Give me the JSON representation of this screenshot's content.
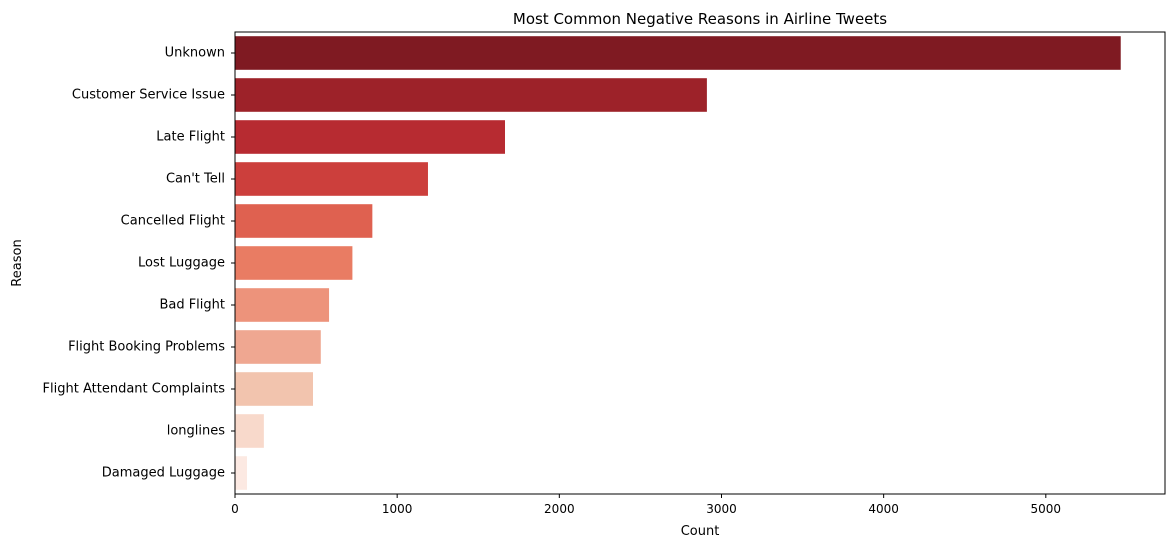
{
  "chart_data": {
    "type": "bar",
    "orientation": "horizontal",
    "title": "Most Common Negative Reasons in Airline Tweets",
    "xlabel": "Count",
    "ylabel": "Reason",
    "categories": [
      "Unknown",
      "Customer Service Issue",
      "Late Flight",
      "Can't Tell",
      "Cancelled Flight",
      "Lost Luggage",
      "Bad Flight",
      "Flight Booking Problems",
      "Flight Attendant Complaints",
      "longlines",
      "Damaged Luggage"
    ],
    "values": [
      5462,
      2910,
      1665,
      1190,
      847,
      724,
      580,
      529,
      481,
      178,
      74
    ],
    "colors": [
      "#7f1a22",
      "#9d2229",
      "#b72b31",
      "#cc3f3c",
      "#df6150",
      "#e97c63",
      "#ed937b",
      "#efa791",
      "#f2c4ae",
      "#f8d9cb",
      "#fce9e2"
    ],
    "xlim": [
      0,
      5735
    ],
    "xticks": [
      0,
      1000,
      2000,
      3000,
      4000,
      5000
    ],
    "grid": false,
    "legend": "none"
  }
}
